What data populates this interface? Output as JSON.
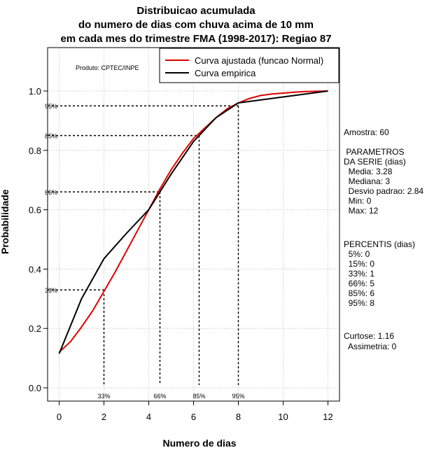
{
  "chart_data": {
    "type": "line",
    "title": [
      "Distribuicao acumulada",
      "do numero de dias com chuva acima de 10 mm",
      "em cada mes do trimestre FMA (1998-2017): Regiao 87"
    ],
    "xlabel": "Numero de dias",
    "ylabel": "Probabilidade",
    "xlim": [
      -0.5,
      12.5
    ],
    "ylim": [
      -0.05,
      1.15
    ],
    "xticks": [
      0,
      2,
      4,
      6,
      8,
      10,
      12
    ],
    "yticks": [
      0.0,
      0.2,
      0.4,
      0.6,
      0.8,
      1.0
    ],
    "ytick_labels": [
      "0.0",
      "0.2",
      "0.4",
      "0.6",
      "0.8",
      "1.0"
    ],
    "grid": true,
    "product_label": "Produto: CPTEC/INPE",
    "legend_position": "top-right",
    "series": [
      {
        "name": "Curva ajustada (funcao Normal)",
        "color": "#e00000",
        "x": [
          0,
          0.5,
          1,
          1.5,
          2,
          2.5,
          3,
          3.5,
          4,
          4.5,
          5,
          5.5,
          6,
          6.5,
          7,
          7.5,
          8,
          8.5,
          9,
          9.5,
          10,
          10.5,
          11,
          11.5,
          12
        ],
        "y": [
          0.12,
          0.155,
          0.205,
          0.26,
          0.325,
          0.39,
          0.46,
          0.53,
          0.6,
          0.67,
          0.735,
          0.79,
          0.84,
          0.875,
          0.91,
          0.94,
          0.96,
          0.975,
          0.985,
          0.99,
          0.993,
          0.996,
          0.998,
          0.999,
          1.0
        ]
      },
      {
        "name": "Curva empirica",
        "color": "#000000",
        "x": [
          0,
          1,
          2,
          3,
          4,
          5,
          6,
          7,
          8,
          9,
          10,
          11,
          12
        ],
        "y": [
          0.115,
          0.3,
          0.435,
          0.52,
          0.6,
          0.72,
          0.83,
          0.91,
          0.96,
          0.97,
          0.98,
          0.99,
          1.0
        ]
      }
    ],
    "percentile_lines": [
      {
        "label": "33%",
        "x": 2.0,
        "y": 0.33
      },
      {
        "label": "66%",
        "x": 4.5,
        "y": 0.66
      },
      {
        "label": "85%",
        "x": 6.25,
        "y": 0.85
      },
      {
        "label": "95%",
        "x": 8.0,
        "y": 0.95
      }
    ]
  },
  "stats": {
    "sample": "Amostra: 60",
    "params_title": " PARAMETROS\nDA SERIE (dias)",
    "params": "  Media: 3.28\n  Mediana: 3\n  Desvio padrao: 2.84\n  Min: 0\n  Max: 12",
    "percentiles_title": "PERCENTIS (dias)",
    "percentiles": "  5%: 0\n  15%: 0\n  33%: 1\n  66%: 5\n  85%: 6\n  95%: 8",
    "kurtosis": "Curtose: 1.16",
    "skewness": "  Assimetria: 0"
  }
}
